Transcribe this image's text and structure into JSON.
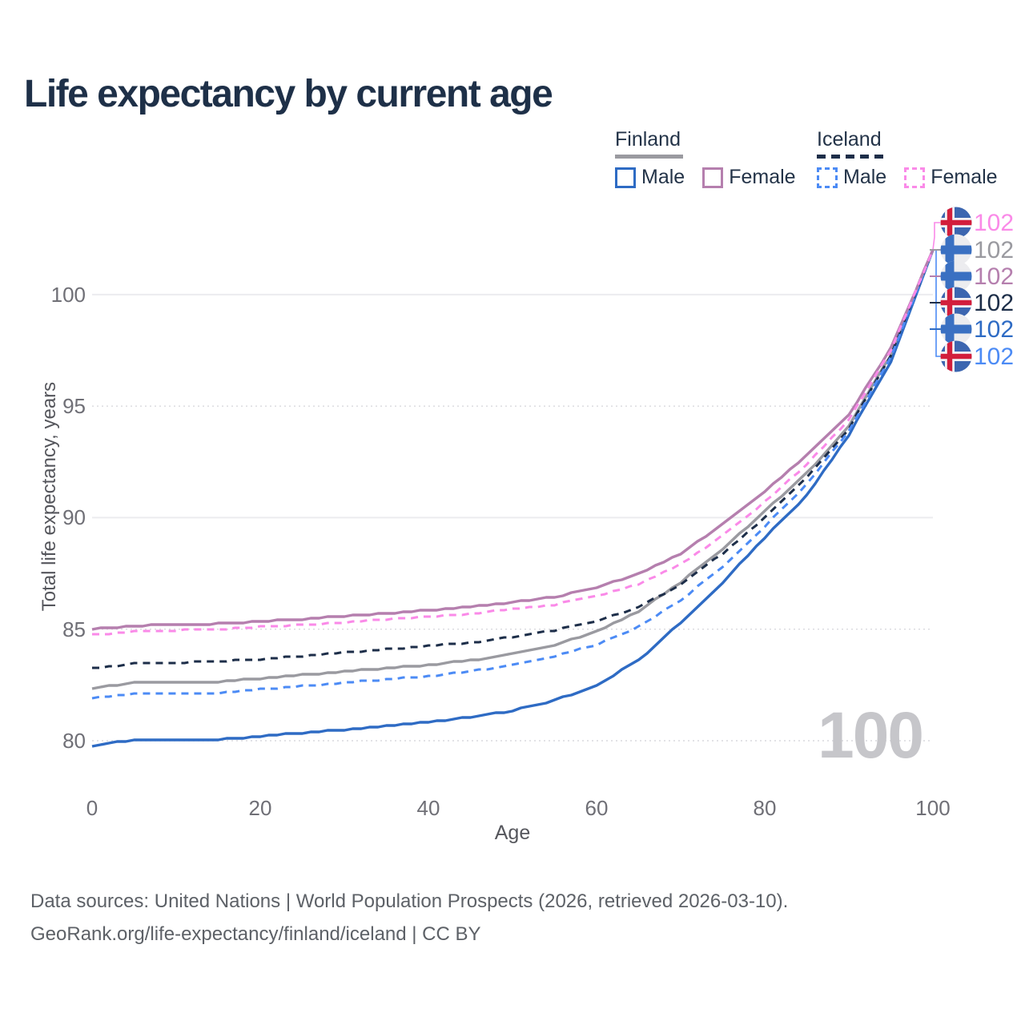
{
  "title": "Life expectancy by current age",
  "legend": {
    "groups": [
      {
        "label": "Finland",
        "line_style": "solid",
        "underline_color": "#9a9aa0",
        "items": [
          {
            "label": "Male",
            "color": "#2e6bc4"
          },
          {
            "label": "Female",
            "color": "#b57fae"
          }
        ]
      },
      {
        "label": "Iceland",
        "line_style": "dashed",
        "underline_color": "#1d2e49",
        "items": [
          {
            "label": "Male",
            "color": "#4c8bf5"
          },
          {
            "label": "Female",
            "color": "#fa8ae8"
          }
        ]
      }
    ]
  },
  "chart_data": {
    "type": "line",
    "title": "Life expectancy by current age",
    "xlabel": "Age",
    "ylabel": "Total life expectancy, years",
    "x": [
      0,
      5,
      10,
      15,
      20,
      25,
      30,
      35,
      40,
      45,
      50,
      55,
      60,
      65,
      70,
      75,
      80,
      85,
      90,
      95,
      100
    ],
    "series": [
      {
        "name": "Finland (both sexes)",
        "country": "Finland",
        "sex": "all",
        "color": "#9a9aa0",
        "dash": "solid",
        "values": [
          82.35,
          82.6,
          82.6,
          82.65,
          82.8,
          82.95,
          83.1,
          83.25,
          83.4,
          83.6,
          83.9,
          84.3,
          84.9,
          85.8,
          87.1,
          88.6,
          90.3,
          92.0,
          94.1,
          97.3,
          102
        ]
      },
      {
        "name": "Finland Male",
        "country": "Finland",
        "sex": "male",
        "color": "#2e6bc4",
        "dash": "solid",
        "values": [
          79.75,
          80.05,
          80.05,
          80.05,
          80.2,
          80.35,
          80.5,
          80.65,
          80.85,
          81.05,
          81.35,
          81.8,
          82.5,
          83.6,
          85.3,
          87.1,
          89.1,
          91.0,
          93.7,
          97.0,
          102
        ]
      },
      {
        "name": "Iceland (both sexes)",
        "country": "Iceland",
        "sex": "all",
        "color": "#1d2e49",
        "dash": "dashed",
        "values": [
          83.25,
          83.45,
          83.5,
          83.55,
          83.65,
          83.8,
          83.95,
          84.1,
          84.25,
          84.4,
          84.65,
          84.95,
          85.35,
          86.0,
          87.0,
          88.4,
          90.0,
          91.8,
          94.0,
          97.3,
          102
        ]
      },
      {
        "name": "Iceland Male",
        "country": "Iceland",
        "sex": "male",
        "color": "#4c8bf5",
        "dash": "dashed",
        "values": [
          81.9,
          82.1,
          82.1,
          82.15,
          82.3,
          82.45,
          82.6,
          82.75,
          82.9,
          83.1,
          83.4,
          83.8,
          84.3,
          85.1,
          86.3,
          87.8,
          89.6,
          91.5,
          93.9,
          97.2,
          102
        ]
      },
      {
        "name": "Finland Female",
        "country": "Finland",
        "sex": "female",
        "color": "#b57fae",
        "dash": "solid",
        "values": [
          85.0,
          85.15,
          85.2,
          85.25,
          85.35,
          85.45,
          85.6,
          85.7,
          85.85,
          86.0,
          86.2,
          86.45,
          86.85,
          87.5,
          88.4,
          89.7,
          91.2,
          92.8,
          94.6,
          97.6,
          102
        ]
      },
      {
        "name": "Iceland Female",
        "country": "Iceland",
        "sex": "female",
        "color": "#fa8ae8",
        "dash": "dashed",
        "values": [
          84.75,
          84.9,
          84.95,
          85.0,
          85.1,
          85.2,
          85.3,
          85.45,
          85.55,
          85.7,
          85.9,
          86.1,
          86.5,
          87.0,
          87.9,
          89.2,
          90.7,
          92.4,
          94.4,
          97.5,
          102
        ]
      }
    ],
    "xticks": [
      0,
      20,
      40,
      60,
      80,
      100
    ],
    "yticks": [
      80,
      85,
      90,
      95,
      100
    ],
    "ytick_styles": [
      "dotted",
      "dotted",
      "solid",
      "dotted",
      "solid"
    ],
    "xlim": [
      0,
      100
    ],
    "ylim": [
      78.5,
      103
    ],
    "grid": "horizontal",
    "legend_position": "top-right",
    "end_labels": [
      {
        "value": "102",
        "flag": "iceland",
        "series": "Iceland Female",
        "color": "#fa8ae8"
      },
      {
        "value": "102",
        "flag": "finland",
        "series": "Finland (both sexes)",
        "color": "#9a9aa0"
      },
      {
        "value": "102",
        "flag": "finland",
        "series": "Finland Female",
        "color": "#b57fae"
      },
      {
        "value": "102",
        "flag": "iceland",
        "series": "Iceland (both sexes)",
        "color": "#1d2e49"
      },
      {
        "value": "102",
        "flag": "finland",
        "series": "Finland Male",
        "color": "#2e6bc4"
      },
      {
        "value": "102",
        "flag": "iceland",
        "series": "Iceland Male",
        "color": "#4c8bf5"
      }
    ],
    "watermark": "100"
  },
  "footer": {
    "line1": "Data sources: United Nations | World Population Prospects (2026, retrieved 2026-03-10).",
    "line2": "GeoRank.org/life-expectancy/finland/iceland | CC BY"
  }
}
